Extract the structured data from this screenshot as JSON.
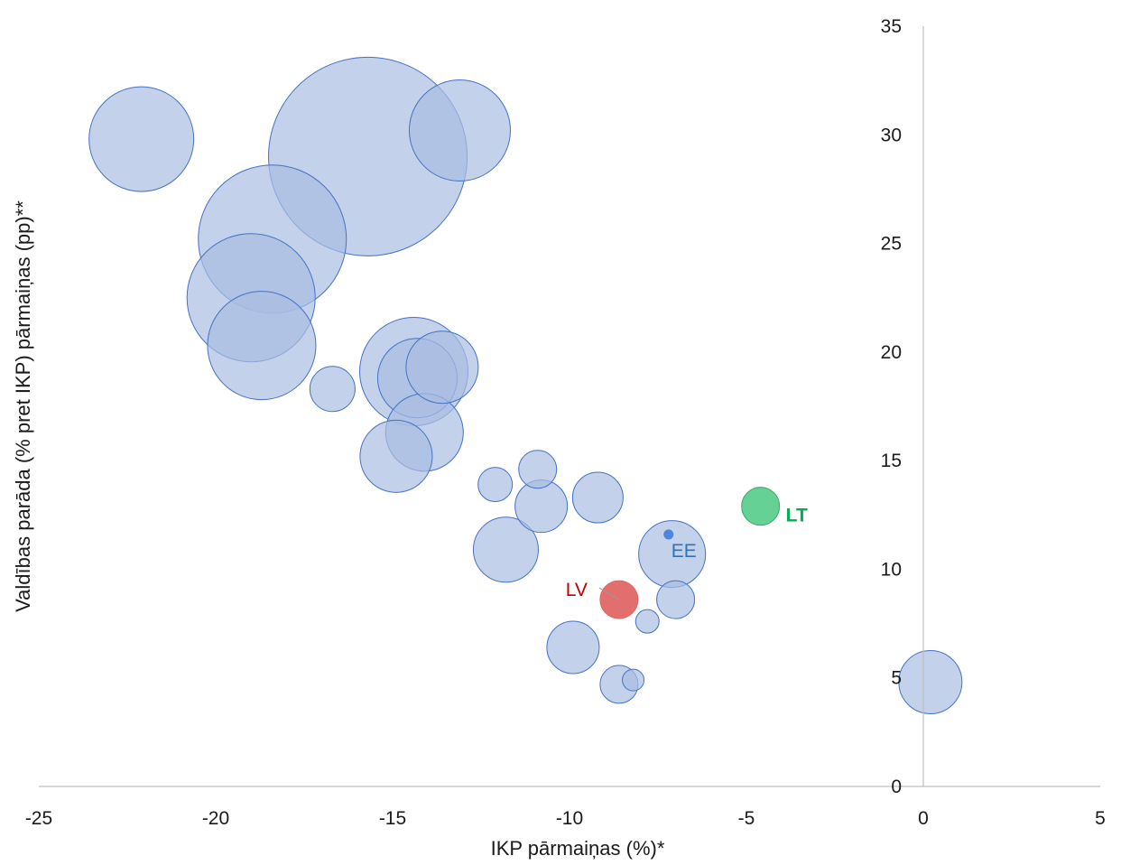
{
  "chart_data": {
    "type": "scatter",
    "subtype": "bubble",
    "title": "",
    "xlabel": "IKP pārmaiņas (%)*",
    "ylabel": "Valdības parāda (% pret IKP) pārmaiņas (pp)**",
    "xlim": [
      -25,
      5
    ],
    "ylim": [
      0,
      35
    ],
    "xticks": [
      "-25",
      "-20",
      "-15",
      "-10",
      "-5",
      "0",
      "5"
    ],
    "yticks": [
      "0",
      "5",
      "10",
      "15",
      "20",
      "25",
      "30",
      "35"
    ],
    "grid": false,
    "legend": "none",
    "colors": {
      "bubble_fill": "#a9bde3",
      "bubble_stroke": "#4472c4",
      "lv_fill": "#e06666",
      "lt_fill": "#5ecf8f",
      "ee_fill": "#4f86d9",
      "lv_label": "#c00000",
      "lt_label": "#00b050",
      "ee_label": "#2e75b6"
    },
    "points": [
      {
        "x": -22.1,
        "y": 29.8,
        "size": 58
      },
      {
        "x": -15.7,
        "y": 29.0,
        "size": 110
      },
      {
        "x": -13.1,
        "y": 30.2,
        "size": 56
      },
      {
        "x": -18.4,
        "y": 25.2,
        "size": 82
      },
      {
        "x": -19.0,
        "y": 22.5,
        "size": 71
      },
      {
        "x": -18.7,
        "y": 20.3,
        "size": 60
      },
      {
        "x": -16.7,
        "y": 18.3,
        "size": 25
      },
      {
        "x": -14.4,
        "y": 19.1,
        "size": 60
      },
      {
        "x": -14.3,
        "y": 18.8,
        "size": 44
      },
      {
        "x": -13.6,
        "y": 19.3,
        "size": 40
      },
      {
        "x": -14.1,
        "y": 16.3,
        "size": 43
      },
      {
        "x": -14.9,
        "y": 15.2,
        "size": 40
      },
      {
        "x": -12.1,
        "y": 13.9,
        "size": 19
      },
      {
        "x": -10.9,
        "y": 14.6,
        "size": 21
      },
      {
        "x": -10.8,
        "y": 12.9,
        "size": 29
      },
      {
        "x": -9.2,
        "y": 13.3,
        "size": 28
      },
      {
        "x": -11.8,
        "y": 10.9,
        "size": 36
      },
      {
        "x": -7.1,
        "y": 10.7,
        "size": 37
      },
      {
        "x": -7.0,
        "y": 8.6,
        "size": 21
      },
      {
        "x": -7.8,
        "y": 7.6,
        "size": 13
      },
      {
        "x": -9.9,
        "y": 6.4,
        "size": 29
      },
      {
        "x": -8.6,
        "y": 4.7,
        "size": 21
      },
      {
        "x": -8.2,
        "y": 4.9,
        "size": 12
      },
      {
        "x": 0.2,
        "y": 4.8,
        "size": 35
      },
      {
        "x": -8.6,
        "y": 8.6,
        "size": 21,
        "label": "LV"
      },
      {
        "x": -7.2,
        "y": 11.6,
        "size": 5,
        "label": "EE"
      },
      {
        "x": -4.6,
        "y": 12.9,
        "size": 21,
        "label": "LT"
      }
    ]
  }
}
